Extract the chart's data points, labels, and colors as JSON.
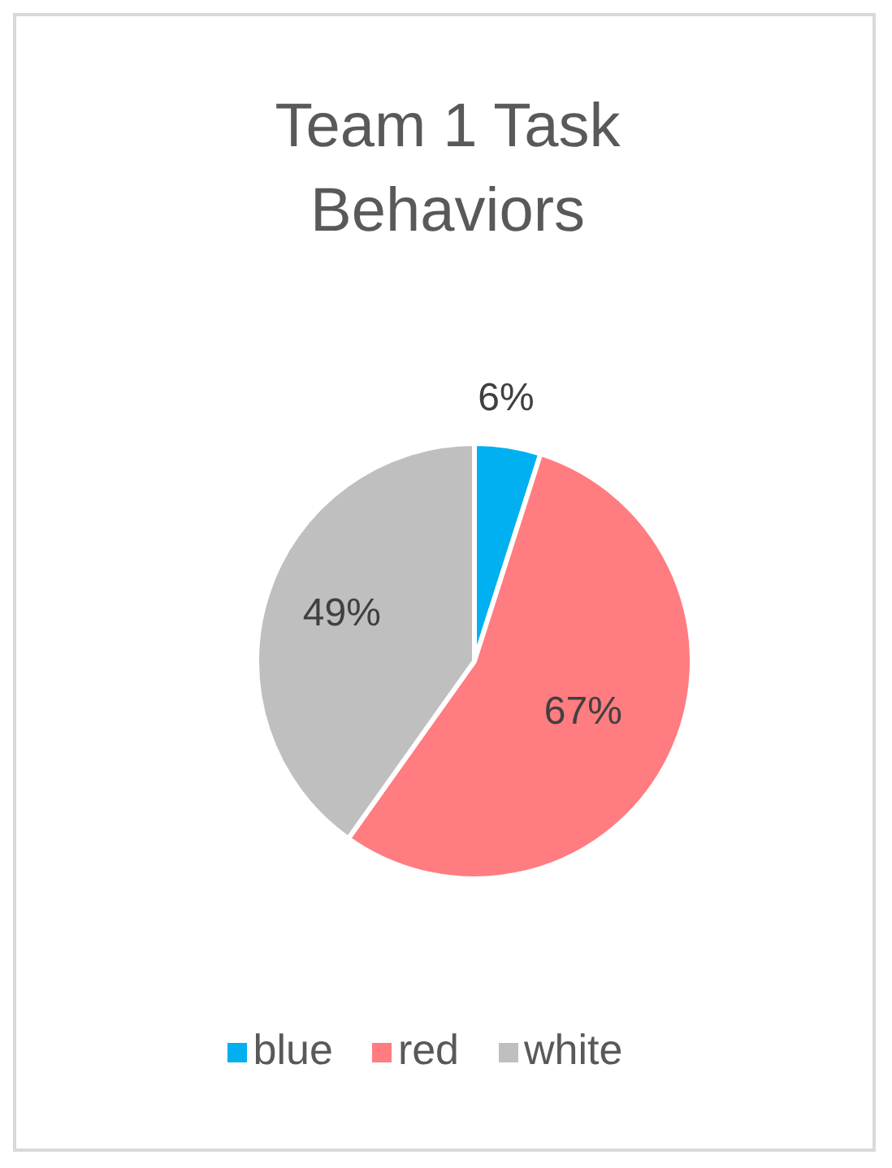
{
  "chart_data": {
    "type": "pie",
    "title": "Team 1 Task Behaviors",
    "categories": [
      "blue",
      "red",
      "white"
    ],
    "values": [
      6,
      67,
      49
    ],
    "colors": [
      "#00b0f0",
      "#ff7c80",
      "#bfbfbf"
    ],
    "value_labels": [
      "6%",
      "67%",
      "49%"
    ],
    "legend": "bottom"
  }
}
